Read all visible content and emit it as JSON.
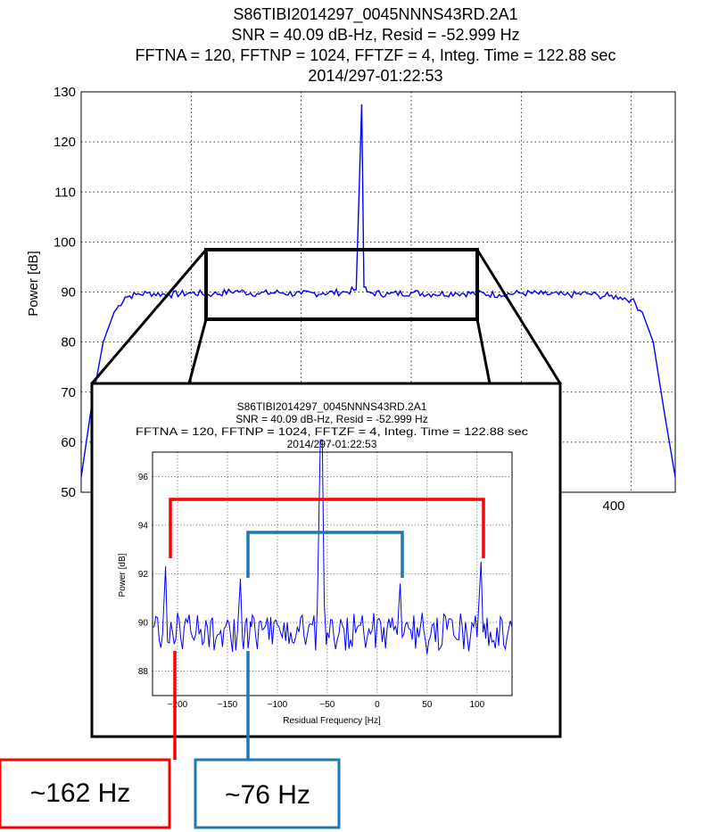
{
  "main_chart": {
    "title_lines": [
      "S86TIBI2014297_0045NNNS43RD.2A1",
      "SNR = 40.09 dB-Hz, Resid = -52.999 Hz",
      "FFTNA = 120, FFTNP = 1024, FFTZF = 4, Integ. Time = 122.88 sec",
      "2014/297-01:22:53"
    ],
    "ylabel": "Power [dB]",
    "y_ticks": [
      "130",
      "120",
      "110",
      "100",
      "90",
      "80",
      "70",
      "60",
      "50"
    ],
    "x_ticks_visible": [
      "400"
    ]
  },
  "inset_chart": {
    "title_lines": [
      "S86TIBI2014297_0045NNNS43RD.2A1",
      "SNR = 40.09 dB-Hz, Resid = -52.999 Hz",
      "FFTNA = 120, FFTNP = 1024, FFTZF = 4, Integ. Time = 122.88 sec",
      "2014/297-01:22:53"
    ],
    "ylabel": "Power [dB]",
    "xlabel": "Residual Frequency [Hz]",
    "y_ticks": [
      "96",
      "94",
      "92",
      "90",
      "88"
    ],
    "x_ticks": [
      "-200",
      "-150",
      "-100",
      "-50",
      "0",
      "50",
      "100"
    ]
  },
  "callouts": {
    "red_label": "~162 Hz",
    "blue_label": "~76 Hz"
  },
  "colors": {
    "signal": "#0000ff",
    "red_bracket": "#ff0000",
    "blue_bracket": "#1f77b4",
    "zoom_box": "#000000"
  },
  "chart_data": [
    {
      "type": "line",
      "title": "S86TIBI2014297_0045NNNS43RD.2A1",
      "ylabel": "Power [dB]",
      "xlabel": "",
      "ylim": [
        50,
        130
      ],
      "xlim": [
        -60,
        480
      ],
      "grid": true,
      "series": [
        {
          "x": [
            -60,
            -50,
            -40,
            -30,
            -20,
            -10,
            0,
            20,
            40,
            60,
            80,
            100,
            120,
            140,
            160,
            180,
            190,
            195,
            197,
            200,
            205,
            220,
            240,
            260,
            280,
            300,
            320,
            340,
            360,
            380,
            400,
            410,
            420,
            430,
            440,
            450,
            460,
            470,
            480
          ],
          "y": [
            53,
            68,
            80,
            86,
            89,
            89.5,
            89.8,
            89.5,
            89.8,
            89.6,
            90.2,
            89.7,
            89.9,
            89.6,
            89.8,
            90.0,
            90.5,
            127.5,
            91,
            90.0,
            89.8,
            89.6,
            89.9,
            89.6,
            89.8,
            89.7,
            89.5,
            89.8,
            89.6,
            89.4,
            89.7,
            89.3,
            89.2,
            89.0,
            88.5,
            86,
            80,
            66,
            53
          ]
        }
      ]
    },
    {
      "type": "line",
      "title": "S86TIBI2014297_0045NNNS43RD.2A1",
      "ylabel": "Power [dB]",
      "xlabel": "Residual Frequency [Hz]",
      "ylim": [
        87,
        97
      ],
      "xlim": [
        -225,
        135
      ],
      "grid": true,
      "series": [
        {
          "x": [
            -225,
            -220,
            -215,
            -212,
            -210,
            -205,
            -200,
            -195,
            -190,
            -185,
            -180,
            -175,
            -170,
            -165,
            -160,
            -155,
            -150,
            -145,
            -140,
            -137,
            -135,
            -132,
            -128,
            -125,
            -120,
            -115,
            -110,
            -105,
            -100,
            -95,
            -90,
            -85,
            -80,
            -75,
            -70,
            -65,
            -60,
            -57,
            -55,
            -53,
            -50,
            -45,
            -40,
            -35,
            -30,
            -25,
            -20,
            -15,
            -10,
            -5,
            0,
            5,
            10,
            15,
            20,
            23,
            25,
            30,
            35,
            40,
            45,
            50,
            55,
            60,
            65,
            70,
            75,
            80,
            85,
            90,
            95,
            100,
            104,
            106,
            110,
            115,
            120,
            125,
            130,
            135
          ],
          "y": [
            89.8,
            90.2,
            89.5,
            92.3,
            89.2,
            89.6,
            90.4,
            88.9,
            90.0,
            89.4,
            90.3,
            89.1,
            89.8,
            90.2,
            89.5,
            89.0,
            90.1,
            88.8,
            89.6,
            91.8,
            89.3,
            90.0,
            89.4,
            90.3,
            88.9,
            89.7,
            90.2,
            89.1,
            89.9,
            89.4,
            90.0,
            89.2,
            89.8,
            90.3,
            89.5,
            89.9,
            90.6,
            97.5,
            97.5,
            90.8,
            89.6,
            90.1,
            89.3,
            89.9,
            90.2,
            89.0,
            89.8,
            90.3,
            89.4,
            89.7,
            90.1,
            89.2,
            89.8,
            90.2,
            89.5,
            91.6,
            89.4,
            90.0,
            89.3,
            89.8,
            90.4,
            88.7,
            89.9,
            90.2,
            89.1,
            89.7,
            90.1,
            89.3,
            89.9,
            89.5,
            90.0,
            89.4,
            92.5,
            89.6,
            90.2,
            89.2,
            89.8,
            90.1,
            89.4,
            89.8
          ]
        }
      ]
    }
  ]
}
